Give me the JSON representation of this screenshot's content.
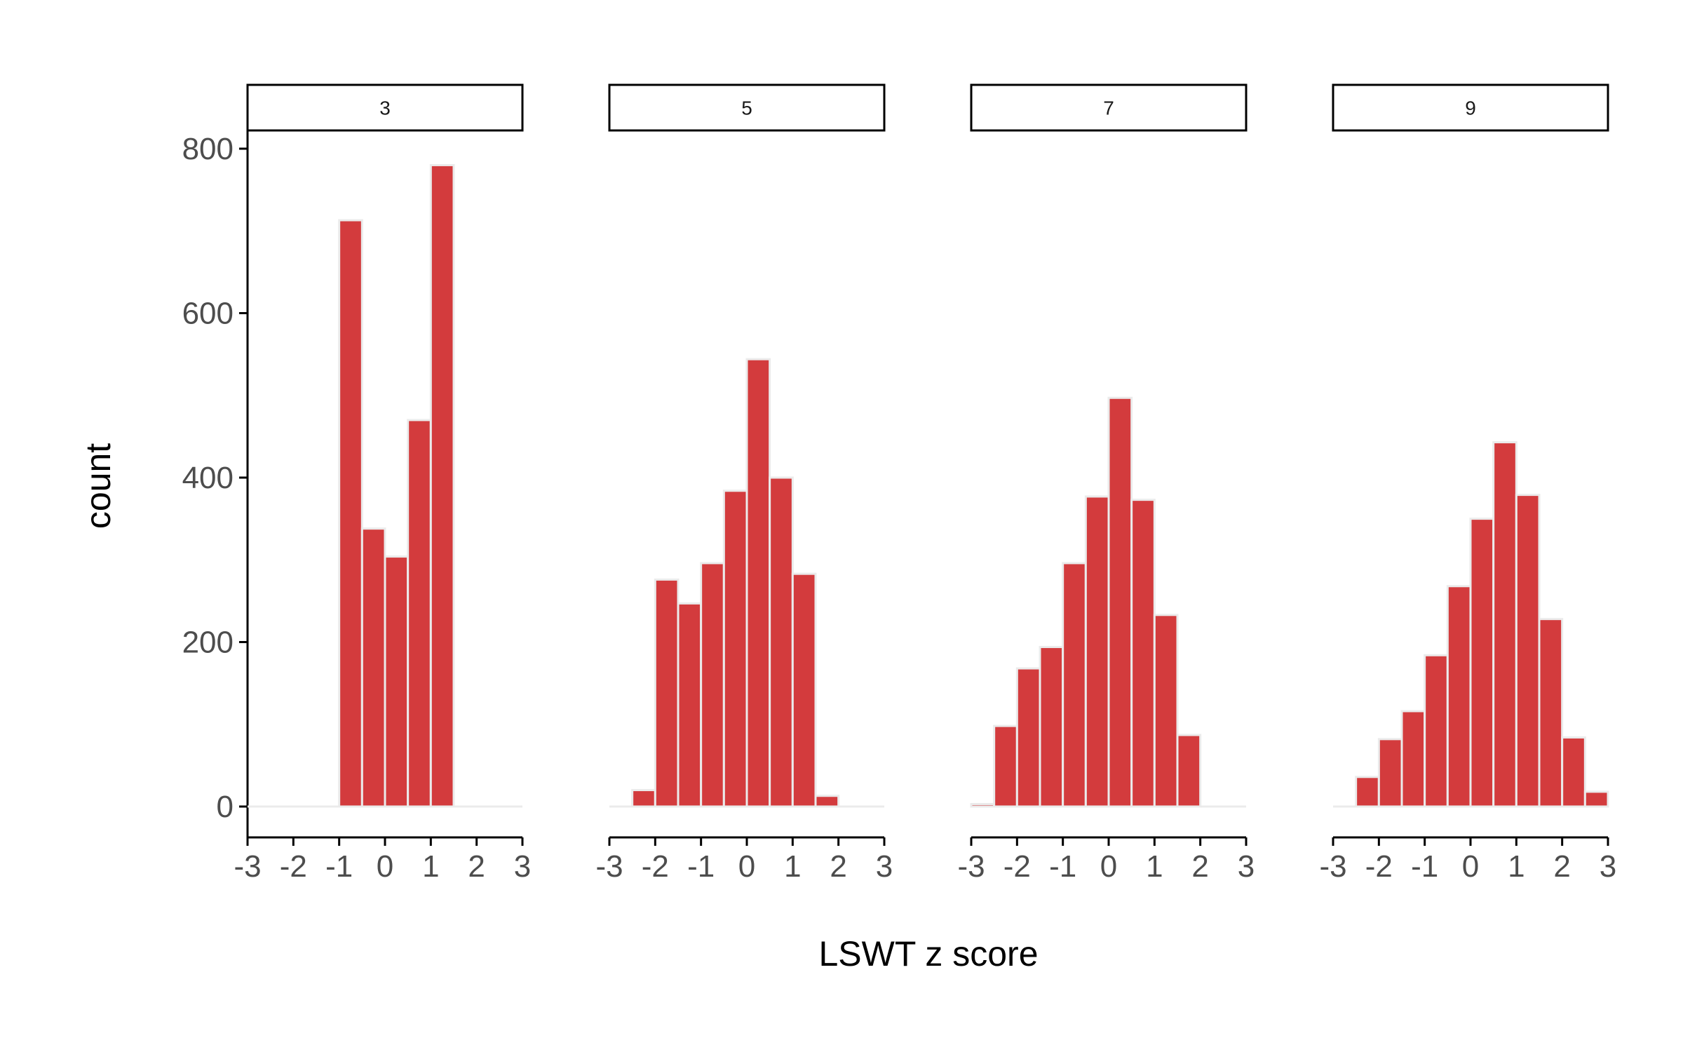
{
  "chart_data": {
    "type": "bar",
    "subtype": "faceted-histogram",
    "xlabel": "LSWT z score",
    "ylabel": "count",
    "xlim": [
      -3,
      3
    ],
    "ylim": [
      0,
      800
    ],
    "x_ticks": [
      -3,
      -2,
      -1,
      0,
      1,
      2,
      3
    ],
    "y_ticks": [
      0,
      200,
      400,
      600,
      800
    ],
    "grid": false,
    "colors": {
      "bar_fill": "#d33b3d",
      "bar_outline": "#ebebeb",
      "axis": "#000000",
      "tick_label": "#4d4d4d"
    },
    "bin_width": 0.5,
    "bin_centers": [
      -2.75,
      -2.25,
      -1.75,
      -1.25,
      -0.75,
      -0.25,
      0.25,
      0.75,
      1.25,
      1.75,
      2.25,
      2.75
    ],
    "facets": [
      {
        "label": "3",
        "counts": [
          0,
          0,
          0,
          0,
          713,
          338,
          304,
          470,
          780,
          0,
          0,
          0
        ]
      },
      {
        "label": "5",
        "counts": [
          0,
          20,
          276,
          247,
          296,
          384,
          544,
          400,
          283,
          13,
          0,
          0
        ]
      },
      {
        "label": "7",
        "counts": [
          3,
          98,
          168,
          194,
          296,
          377,
          497,
          373,
          233,
          87,
          0,
          0
        ]
      },
      {
        "label": "9",
        "counts": [
          0,
          36,
          82,
          116,
          184,
          268,
          350,
          443,
          379,
          228,
          84,
          18
        ]
      }
    ]
  }
}
